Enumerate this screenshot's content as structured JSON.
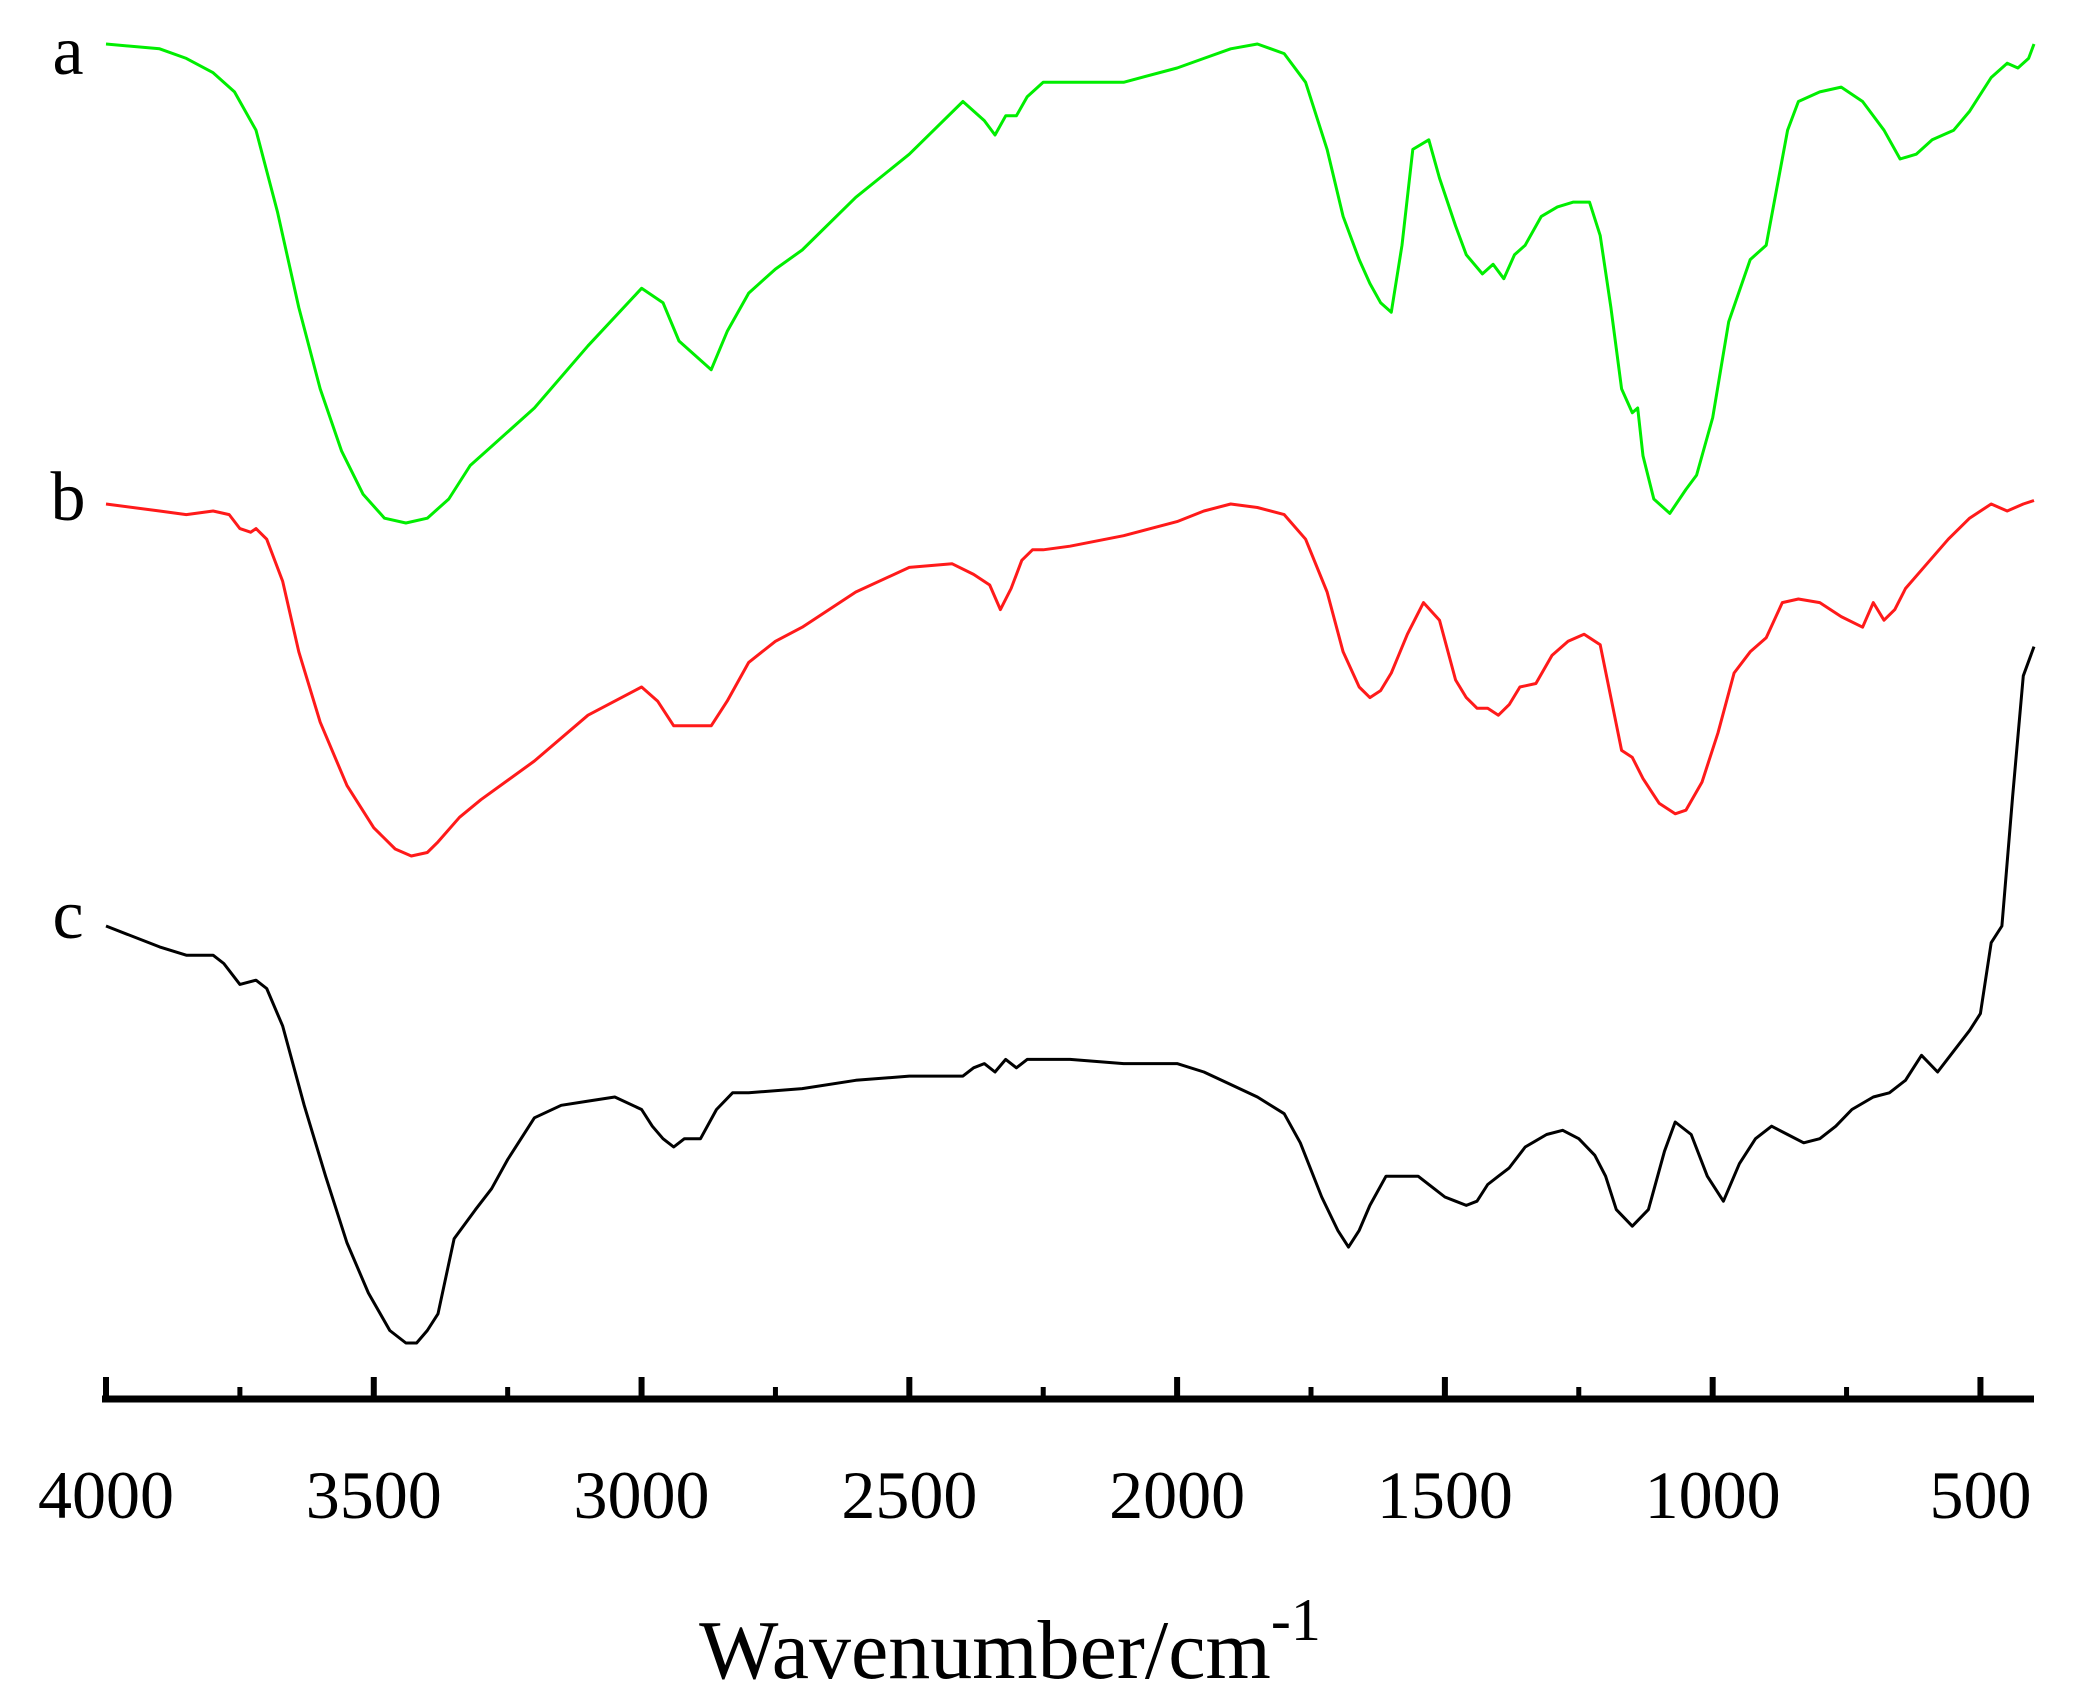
{
  "chart_data": {
    "type": "line",
    "xlabel": "Wavenumber/cm",
    "xlabel_superscript": "-1",
    "ylabel": "",
    "xlim": [
      4000,
      400
    ],
    "x_reversed": true,
    "x_ticks": [
      4000,
      3500,
      3000,
      2500,
      2000,
      1500,
      1000,
      500
    ],
    "x_tick_labels": [
      "4000",
      "3500",
      "3000",
      "2500",
      "2000",
      "1500",
      "1000",
      "500"
    ],
    "y_axis_shown": false,
    "grid": false,
    "legend": "inline labels at left",
    "series": [
      {
        "name": "a",
        "color": "#00ee00",
        "x": [
          4000,
          3900,
          3850,
          3800,
          3760,
          3720,
          3680,
          3640,
          3600,
          3560,
          3520,
          3480,
          3440,
          3400,
          3360,
          3320,
          3280,
          3200,
          3100,
          3000,
          2960,
          2930,
          2900,
          2870,
          2840,
          2800,
          2750,
          2700,
          2600,
          2500,
          2400,
          2360,
          2340,
          2320,
          2300,
          2280,
          2250,
          2200,
          2100,
          2000,
          1950,
          1900,
          1850,
          1800,
          1760,
          1720,
          1690,
          1660,
          1640,
          1620,
          1600,
          1580,
          1560,
          1530,
          1510,
          1480,
          1460,
          1430,
          1410,
          1390,
          1370,
          1350,
          1320,
          1290,
          1260,
          1230,
          1210,
          1190,
          1170,
          1150,
          1140,
          1130,
          1110,
          1080,
          1050,
          1030,
          1000,
          970,
          930,
          900,
          880,
          860,
          840,
          800,
          760,
          720,
          680,
          650,
          620,
          590,
          550,
          520,
          480,
          450,
          430,
          410,
          400
        ],
        "y": [
          0.0,
          0.01,
          0.03,
          0.06,
          0.1,
          0.18,
          0.35,
          0.55,
          0.72,
          0.85,
          0.94,
          0.99,
          1.0,
          0.99,
          0.95,
          0.88,
          0.84,
          0.76,
          0.63,
          0.51,
          0.54,
          0.62,
          0.65,
          0.68,
          0.6,
          0.52,
          0.47,
          0.43,
          0.32,
          0.23,
          0.12,
          0.16,
          0.19,
          0.15,
          0.15,
          0.11,
          0.08,
          0.08,
          0.08,
          0.05,
          0.03,
          0.01,
          0.0,
          0.02,
          0.08,
          0.22,
          0.36,
          0.45,
          0.5,
          0.54,
          0.56,
          0.42,
          0.22,
          0.2,
          0.28,
          0.38,
          0.44,
          0.48,
          0.46,
          0.49,
          0.44,
          0.42,
          0.36,
          0.34,
          0.33,
          0.33,
          0.4,
          0.55,
          0.72,
          0.77,
          0.76,
          0.86,
          0.95,
          0.98,
          0.93,
          0.9,
          0.78,
          0.58,
          0.45,
          0.42,
          0.3,
          0.18,
          0.12,
          0.1,
          0.09,
          0.12,
          0.18,
          0.24,
          0.23,
          0.2,
          0.18,
          0.14,
          0.07,
          0.04,
          0.05,
          0.03,
          0.0
        ]
      },
      {
        "name": "b",
        "color": "#ff1a1a",
        "x": [
          4000,
          3900,
          3850,
          3800,
          3770,
          3750,
          3730,
          3720,
          3700,
          3670,
          3640,
          3600,
          3550,
          3500,
          3460,
          3430,
          3400,
          3380,
          3340,
          3300,
          3200,
          3100,
          3000,
          2970,
          2940,
          2900,
          2870,
          2840,
          2800,
          2750,
          2700,
          2600,
          2500,
          2420,
          2380,
          2350,
          2330,
          2310,
          2290,
          2270,
          2250,
          2200,
          2100,
          2000,
          1950,
          1900,
          1850,
          1800,
          1760,
          1720,
          1690,
          1660,
          1640,
          1620,
          1600,
          1570,
          1540,
          1510,
          1480,
          1460,
          1440,
          1420,
          1400,
          1380,
          1360,
          1330,
          1300,
          1270,
          1240,
          1210,
          1190,
          1170,
          1150,
          1130,
          1100,
          1070,
          1050,
          1020,
          990,
          960,
          930,
          900,
          870,
          840,
          800,
          760,
          720,
          700,
          680,
          660,
          640,
          600,
          560,
          520,
          480,
          450,
          420,
          400
        ],
        "y": [
          0.0,
          0.02,
          0.03,
          0.02,
          0.03,
          0.07,
          0.08,
          0.07,
          0.1,
          0.22,
          0.42,
          0.62,
          0.8,
          0.92,
          0.98,
          1.0,
          0.99,
          0.96,
          0.89,
          0.84,
          0.73,
          0.6,
          0.52,
          0.56,
          0.63,
          0.63,
          0.63,
          0.56,
          0.45,
          0.39,
          0.35,
          0.25,
          0.18,
          0.17,
          0.2,
          0.23,
          0.3,
          0.24,
          0.16,
          0.13,
          0.13,
          0.12,
          0.09,
          0.05,
          0.02,
          0.0,
          0.01,
          0.03,
          0.1,
          0.25,
          0.42,
          0.52,
          0.55,
          0.53,
          0.48,
          0.37,
          0.28,
          0.33,
          0.5,
          0.55,
          0.58,
          0.58,
          0.6,
          0.57,
          0.52,
          0.51,
          0.43,
          0.39,
          0.37,
          0.4,
          0.55,
          0.7,
          0.72,
          0.78,
          0.85,
          0.88,
          0.87,
          0.79,
          0.65,
          0.48,
          0.42,
          0.38,
          0.28,
          0.27,
          0.28,
          0.32,
          0.35,
          0.28,
          0.33,
          0.3,
          0.24,
          0.17,
          0.1,
          0.04,
          0.0,
          0.02,
          0.0,
          -0.01
        ]
      },
      {
        "name": "c",
        "color": "#000000",
        "x": [
          4000,
          3900,
          3850,
          3800,
          3780,
          3750,
          3720,
          3700,
          3670,
          3630,
          3590,
          3550,
          3510,
          3470,
          3440,
          3420,
          3400,
          3380,
          3350,
          3310,
          3280,
          3250,
          3200,
          3150,
          3100,
          3050,
          3000,
          2980,
          2960,
          2940,
          2920,
          2890,
          2860,
          2830,
          2800,
          2700,
          2600,
          2500,
          2400,
          2380,
          2360,
          2340,
          2320,
          2300,
          2280,
          2250,
          2200,
          2100,
          2000,
          1950,
          1900,
          1850,
          1800,
          1770,
          1730,
          1700,
          1680,
          1660,
          1640,
          1610,
          1580,
          1550,
          1520,
          1500,
          1480,
          1460,
          1440,
          1420,
          1400,
          1380,
          1350,
          1310,
          1280,
          1250,
          1220,
          1200,
          1180,
          1150,
          1120,
          1090,
          1070,
          1040,
          1010,
          980,
          950,
          920,
          890,
          860,
          830,
          800,
          770,
          740,
          700,
          670,
          640,
          610,
          580,
          550,
          520,
          500,
          480,
          460,
          440,
          420,
          400
        ],
        "y": [
          0.0,
          0.05,
          0.07,
          0.07,
          0.09,
          0.14,
          0.13,
          0.15,
          0.24,
          0.43,
          0.6,
          0.76,
          0.88,
          0.97,
          1.0,
          1.0,
          0.97,
          0.93,
          0.75,
          0.68,
          0.63,
          0.56,
          0.46,
          0.43,
          0.42,
          0.41,
          0.44,
          0.48,
          0.51,
          0.53,
          0.51,
          0.51,
          0.44,
          0.4,
          0.4,
          0.39,
          0.37,
          0.36,
          0.36,
          0.34,
          0.33,
          0.35,
          0.32,
          0.34,
          0.32,
          0.32,
          0.32,
          0.33,
          0.33,
          0.35,
          0.38,
          0.41,
          0.45,
          0.52,
          0.65,
          0.73,
          0.77,
          0.73,
          0.67,
          0.6,
          0.6,
          0.6,
          0.63,
          0.65,
          0.66,
          0.67,
          0.66,
          0.62,
          0.6,
          0.58,
          0.53,
          0.5,
          0.49,
          0.51,
          0.55,
          0.6,
          0.68,
          0.72,
          0.68,
          0.54,
          0.47,
          0.5,
          0.6,
          0.66,
          0.57,
          0.51,
          0.48,
          0.5,
          0.52,
          0.51,
          0.48,
          0.44,
          0.41,
          0.4,
          0.37,
          0.31,
          0.35,
          0.3,
          0.25,
          0.21,
          0.04,
          0.0,
          -0.31,
          -0.6,
          -0.67
        ]
      }
    ]
  }
}
